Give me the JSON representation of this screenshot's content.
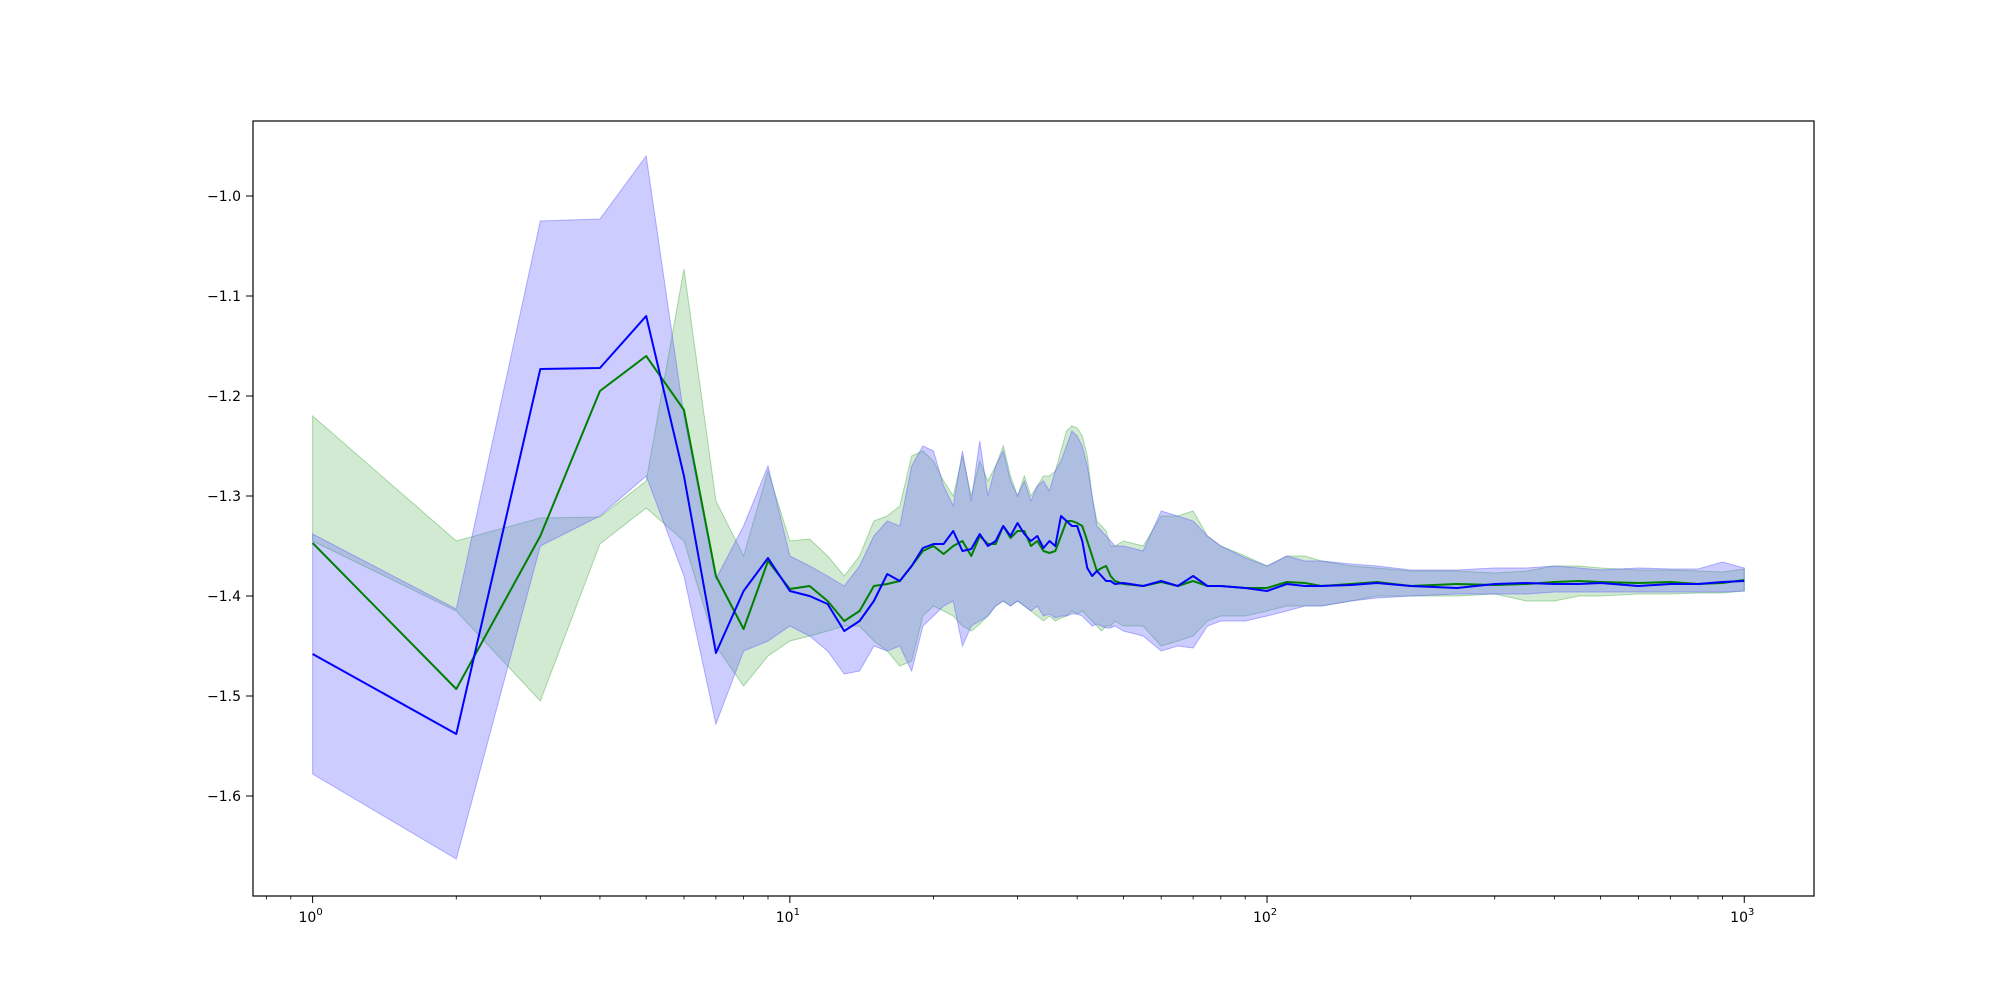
{
  "chart_data": {
    "type": "line",
    "xscale": "log",
    "xlim": [
      0.75,
      1400
    ],
    "ylim": [
      -1.7,
      -0.925
    ],
    "x_ticks": [
      {
        "value": 1,
        "base": "10",
        "exp": "0"
      },
      {
        "value": 10,
        "base": "10",
        "exp": "1"
      },
      {
        "value": 100,
        "base": "10",
        "exp": "2"
      },
      {
        "value": 1000,
        "base": "10",
        "exp": "3"
      }
    ],
    "y_ticks": [
      {
        "value": -1.0,
        "label": "−1.0"
      },
      {
        "value": -1.1,
        "label": "−1.1"
      },
      {
        "value": -1.2,
        "label": "−1.2"
      },
      {
        "value": -1.3,
        "label": "−1.3"
      },
      {
        "value": -1.4,
        "label": "−1.4"
      },
      {
        "value": -1.5,
        "label": "−1.5"
      },
      {
        "value": -1.6,
        "label": "−1.6"
      }
    ],
    "grid": false,
    "legend": "none",
    "series": [
      {
        "color": "#008000",
        "band_color": "#2ca02c",
        "band_opacity": 0.22,
        "x": [
          1,
          2,
          3,
          4,
          5,
          6,
          7,
          8,
          9,
          10,
          11,
          12,
          13,
          14,
          15,
          16,
          17,
          18,
          19,
          20,
          21,
          22,
          23,
          24,
          25,
          26,
          27,
          28,
          29,
          30,
          31,
          32,
          33,
          34,
          35,
          36,
          37,
          38,
          39,
          40,
          41,
          42,
          43,
          44,
          45,
          46,
          47,
          48,
          50,
          55,
          60,
          65,
          70,
          75,
          80,
          90,
          100,
          110,
          120,
          130,
          150,
          170,
          200,
          250,
          300,
          350,
          400,
          450,
          500,
          600,
          700,
          800,
          900,
          1000
        ],
        "y": [
          -1.347,
          -1.493,
          -1.34,
          -1.195,
          -1.16,
          -1.214,
          -1.38,
          -1.433,
          -1.365,
          -1.393,
          -1.39,
          -1.405,
          -1.425,
          -1.415,
          -1.39,
          -1.388,
          -1.385,
          -1.37,
          -1.355,
          -1.35,
          -1.358,
          -1.35,
          -1.345,
          -1.36,
          -1.34,
          -1.348,
          -1.348,
          -1.33,
          -1.342,
          -1.335,
          -1.335,
          -1.35,
          -1.345,
          -1.355,
          -1.357,
          -1.355,
          -1.34,
          -1.325,
          -1.325,
          -1.327,
          -1.33,
          -1.345,
          -1.36,
          -1.375,
          -1.372,
          -1.37,
          -1.38,
          -1.385,
          -1.388,
          -1.39,
          -1.386,
          -1.39,
          -1.385,
          -1.39,
          -1.39,
          -1.392,
          -1.392,
          -1.386,
          -1.387,
          -1.39,
          -1.388,
          -1.386,
          -1.39,
          -1.388,
          -1.389,
          -1.388,
          -1.386,
          -1.385,
          -1.386,
          -1.387,
          -1.386,
          -1.388,
          -1.387,
          -1.384
        ],
        "lower": [
          -1.345,
          -1.415,
          -1.505,
          -1.348,
          -1.312,
          -1.345,
          -1.45,
          -1.49,
          -1.46,
          -1.445,
          -1.44,
          -1.435,
          -1.43,
          -1.43,
          -1.445,
          -1.455,
          -1.47,
          -1.465,
          -1.42,
          -1.41,
          -1.415,
          -1.42,
          -1.43,
          -1.435,
          -1.428,
          -1.42,
          -1.41,
          -1.405,
          -1.41,
          -1.405,
          -1.41,
          -1.415,
          -1.42,
          -1.425,
          -1.42,
          -1.425,
          -1.422,
          -1.42,
          -1.415,
          -1.418,
          -1.415,
          -1.42,
          -1.425,
          -1.43,
          -1.435,
          -1.43,
          -1.43,
          -1.425,
          -1.43,
          -1.43,
          -1.45,
          -1.445,
          -1.44,
          -1.425,
          -1.42,
          -1.42,
          -1.415,
          -1.41,
          -1.41,
          -1.41,
          -1.405,
          -1.4,
          -1.4,
          -1.4,
          -1.398,
          -1.405,
          -1.405,
          -1.4,
          -1.4,
          -1.398,
          -1.398,
          -1.397,
          -1.397,
          -1.395
        ],
        "upper": [
          -1.22,
          -1.345,
          -1.322,
          -1.321,
          -1.285,
          -1.073,
          -1.305,
          -1.36,
          -1.275,
          -1.345,
          -1.343,
          -1.36,
          -1.38,
          -1.36,
          -1.325,
          -1.32,
          -1.31,
          -1.26,
          -1.255,
          -1.265,
          -1.285,
          -1.3,
          -1.26,
          -1.3,
          -1.265,
          -1.285,
          -1.27,
          -1.25,
          -1.28,
          -1.3,
          -1.28,
          -1.3,
          -1.29,
          -1.28,
          -1.28,
          -1.275,
          -1.255,
          -1.235,
          -1.23,
          -1.232,
          -1.24,
          -1.26,
          -1.3,
          -1.325,
          -1.33,
          -1.335,
          -1.35,
          -1.35,
          -1.345,
          -1.35,
          -1.32,
          -1.32,
          -1.315,
          -1.34,
          -1.35,
          -1.36,
          -1.37,
          -1.36,
          -1.36,
          -1.365,
          -1.37,
          -1.372,
          -1.375,
          -1.375,
          -1.377,
          -1.375,
          -1.37,
          -1.37,
          -1.372,
          -1.374,
          -1.374,
          -1.375,
          -1.376,
          -1.373
        ]
      },
      {
        "color": "#0000ff",
        "band_color": "#6464ff",
        "band_opacity": 0.33,
        "x": [
          1,
          2,
          3,
          4,
          5,
          6,
          7,
          8,
          9,
          10,
          11,
          12,
          13,
          14,
          15,
          16,
          17,
          18,
          19,
          20,
          21,
          22,
          23,
          24,
          25,
          26,
          27,
          28,
          29,
          30,
          31,
          32,
          33,
          34,
          35,
          36,
          37,
          38,
          39,
          40,
          41,
          42,
          43,
          44,
          45,
          46,
          47,
          48,
          50,
          55,
          60,
          65,
          70,
          75,
          80,
          90,
          100,
          110,
          120,
          130,
          150,
          170,
          200,
          250,
          300,
          350,
          400,
          450,
          500,
          600,
          700,
          800,
          900,
          1000
        ],
        "y": [
          -1.458,
          -1.538,
          -1.173,
          -1.172,
          -1.12,
          -1.28,
          -1.457,
          -1.395,
          -1.362,
          -1.395,
          -1.4,
          -1.408,
          -1.435,
          -1.425,
          -1.405,
          -1.378,
          -1.385,
          -1.37,
          -1.352,
          -1.348,
          -1.348,
          -1.335,
          -1.355,
          -1.353,
          -1.338,
          -1.35,
          -1.345,
          -1.33,
          -1.34,
          -1.327,
          -1.338,
          -1.345,
          -1.34,
          -1.352,
          -1.345,
          -1.35,
          -1.32,
          -1.325,
          -1.33,
          -1.33,
          -1.345,
          -1.372,
          -1.38,
          -1.375,
          -1.38,
          -1.385,
          -1.385,
          -1.388,
          -1.387,
          -1.39,
          -1.385,
          -1.39,
          -1.38,
          -1.39,
          -1.39,
          -1.392,
          -1.395,
          -1.388,
          -1.39,
          -1.39,
          -1.389,
          -1.387,
          -1.39,
          -1.392,
          -1.388,
          -1.387,
          -1.388,
          -1.388,
          -1.387,
          -1.39,
          -1.388,
          -1.388,
          -1.386,
          -1.385
        ],
        "lower": [
          -1.578,
          -1.663,
          -1.35,
          -1.32,
          -1.28,
          -1.38,
          -1.528,
          -1.455,
          -1.445,
          -1.43,
          -1.44,
          -1.455,
          -1.478,
          -1.475,
          -1.45,
          -1.455,
          -1.45,
          -1.475,
          -1.43,
          -1.42,
          -1.41,
          -1.405,
          -1.45,
          -1.43,
          -1.425,
          -1.42,
          -1.41,
          -1.405,
          -1.41,
          -1.405,
          -1.41,
          -1.415,
          -1.41,
          -1.42,
          -1.418,
          -1.422,
          -1.42,
          -1.42,
          -1.418,
          -1.418,
          -1.42,
          -1.425,
          -1.43,
          -1.428,
          -1.43,
          -1.432,
          -1.432,
          -1.43,
          -1.435,
          -1.44,
          -1.455,
          -1.45,
          -1.452,
          -1.43,
          -1.425,
          -1.425,
          -1.42,
          -1.415,
          -1.41,
          -1.41,
          -1.405,
          -1.402,
          -1.4,
          -1.398,
          -1.398,
          -1.398,
          -1.396,
          -1.396,
          -1.396,
          -1.396,
          -1.396,
          -1.396,
          -1.396,
          -1.395
        ],
        "upper": [
          -1.338,
          -1.413,
          -1.025,
          -1.023,
          -0.96,
          -1.22,
          -1.383,
          -1.33,
          -1.27,
          -1.36,
          -1.37,
          -1.38,
          -1.39,
          -1.37,
          -1.34,
          -1.325,
          -1.33,
          -1.27,
          -1.25,
          -1.255,
          -1.29,
          -1.31,
          -1.255,
          -1.305,
          -1.245,
          -1.3,
          -1.27,
          -1.255,
          -1.285,
          -1.3,
          -1.285,
          -1.305,
          -1.29,
          -1.285,
          -1.295,
          -1.275,
          -1.265,
          -1.25,
          -1.235,
          -1.24,
          -1.25,
          -1.27,
          -1.3,
          -1.33,
          -1.335,
          -1.34,
          -1.345,
          -1.35,
          -1.35,
          -1.355,
          -1.315,
          -1.32,
          -1.325,
          -1.34,
          -1.35,
          -1.362,
          -1.37,
          -1.36,
          -1.365,
          -1.365,
          -1.368,
          -1.37,
          -1.374,
          -1.374,
          -1.372,
          -1.372,
          -1.37,
          -1.372,
          -1.374,
          -1.372,
          -1.373,
          -1.373,
          -1.366,
          -1.372
        ]
      }
    ]
  }
}
